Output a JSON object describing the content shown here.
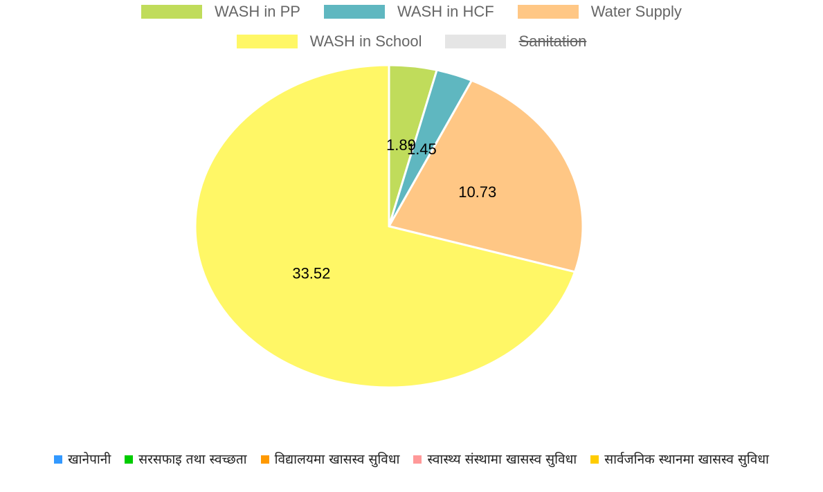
{
  "chart_data": {
    "type": "pie",
    "categories": [
      "WASH in PP",
      "WASH in HCF",
      "Water Supply",
      "WASH in School",
      "Sanitation"
    ],
    "values": [
      1.89,
      1.45,
      10.73,
      33.52,
      null
    ],
    "colors": [
      "#c0dc5b",
      "#5fb7c0",
      "#ffc785",
      "#fff766",
      "#e5e5e5"
    ],
    "legend": "top"
  },
  "bottom_legend": {
    "items": [
      {
        "label": "खानेपानी",
        "color": "#3399ff"
      },
      {
        "label": "सरसफाइ तथा स्वच्छता",
        "color": "#00cc00"
      },
      {
        "label": "विद्यालयमा खासस्व सुविधा",
        "color": "#ff9900"
      },
      {
        "label": "स्वास्थ्य संस्थामा खासस्व सुविधा",
        "color": "#ff9999"
      },
      {
        "label": "सार्वजनिक स्थानमा खासस्व सुविधा",
        "color": "#ffcc00"
      }
    ]
  }
}
